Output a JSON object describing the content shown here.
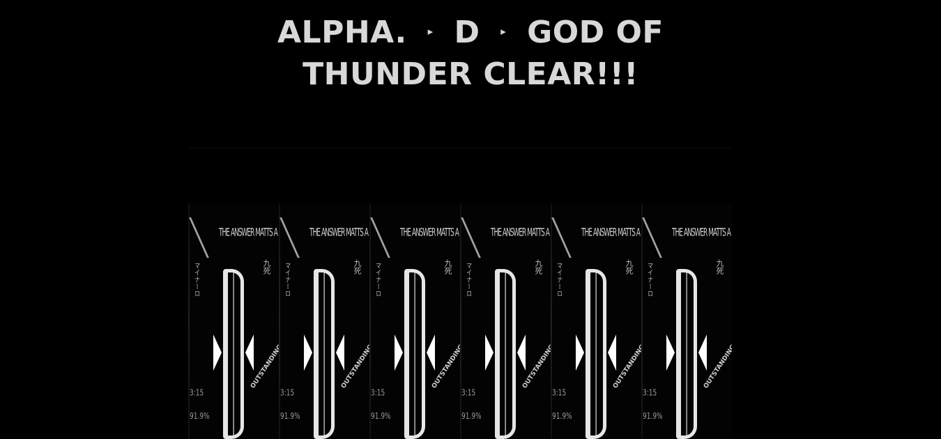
{
  "banner": {
    "line1_part1": "ALPHA.",
    "arrow1": "▸",
    "line1_part2": "D",
    "arrow2": "▸",
    "line1_part3": "GOD OF",
    "line2": "THUNDER CLEAR!!!"
  },
  "result_panels": {
    "count": 6,
    "top_text": "THE ANSWER MATTS A",
    "left_text": "マイナーロ",
    "right_text": "九死",
    "grade_letter": "D",
    "diagonal_text": "OUTSTANDING!!!",
    "bottom_text": "3:15\n91.9%"
  },
  "colors": {
    "background": "#000000",
    "title_text": "#d8d8d8",
    "panel_glyph": "#e6e6e6"
  }
}
